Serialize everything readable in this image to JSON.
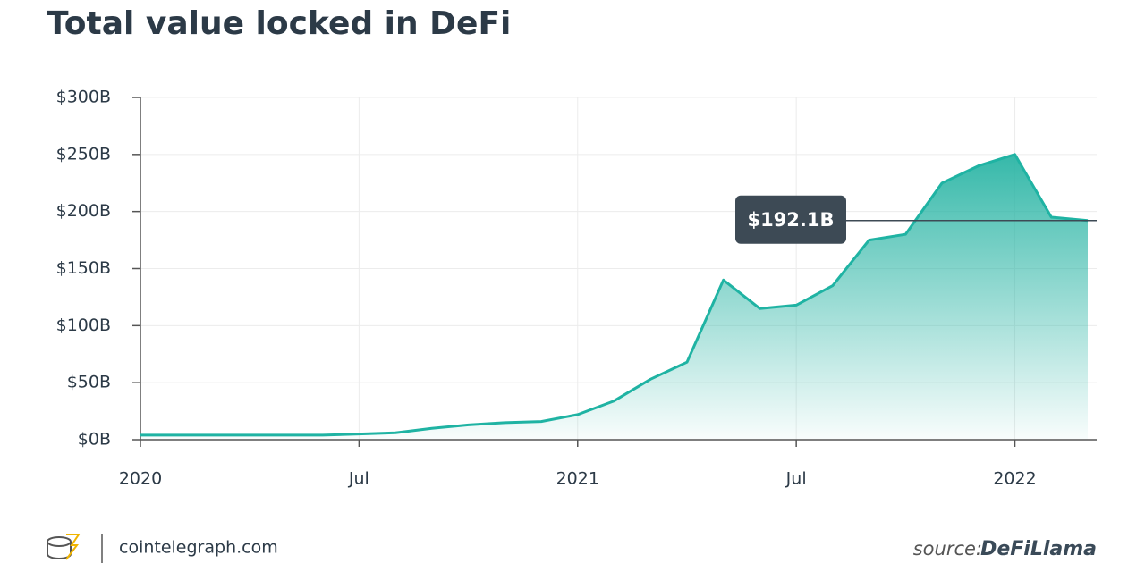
{
  "chart_data": {
    "type": "area",
    "title": "Total value locked in DeFi",
    "x": [
      "2020-01",
      "2020-02",
      "2020-03",
      "2020-04",
      "2020-05",
      "2020-06",
      "2020-07",
      "2020-08",
      "2020-09",
      "2020-10",
      "2020-11",
      "2020-12",
      "2021-01",
      "2021-02",
      "2021-03",
      "2021-04",
      "2021-05",
      "2021-06",
      "2021-07",
      "2021-08",
      "2021-09",
      "2021-10",
      "2021-11",
      "2021-12",
      "2022-01",
      "2022-02",
      "2022-03"
    ],
    "values": [
      4,
      4,
      4,
      4,
      4,
      4,
      5,
      6,
      10,
      13,
      15,
      16,
      22,
      34,
      53,
      68,
      140,
      115,
      118,
      135,
      175,
      180,
      225,
      240,
      250,
      195,
      192.1
    ],
    "color": "#1fb3a3",
    "xlim": [
      "2020-01",
      "2022-03"
    ],
    "xticks": [
      {
        "value": "2020-01",
        "label": "2020"
      },
      {
        "value": "2020-07",
        "label": "Jul"
      },
      {
        "value": "2021-01",
        "label": "2021"
      },
      {
        "value": "2021-07",
        "label": "Jul"
      },
      {
        "value": "2022-01",
        "label": "2022"
      }
    ],
    "ylim": [
      0,
      300
    ],
    "yticks": [
      {
        "value": 0,
        "label": "$0B"
      },
      {
        "value": 50,
        "label": "$50B"
      },
      {
        "value": 100,
        "label": "$100B"
      },
      {
        "value": 150,
        "label": "$150B"
      },
      {
        "value": 200,
        "label": "$200B"
      },
      {
        "value": 250,
        "label": "$250B"
      },
      {
        "value": 300,
        "label": "$300B"
      }
    ],
    "grid": true,
    "annotation": {
      "value": 192.1,
      "label": "$192.1B"
    }
  },
  "footer": {
    "brand": "cointelegraph.com",
    "source_label": "source:",
    "source": "DeFiLlama"
  }
}
